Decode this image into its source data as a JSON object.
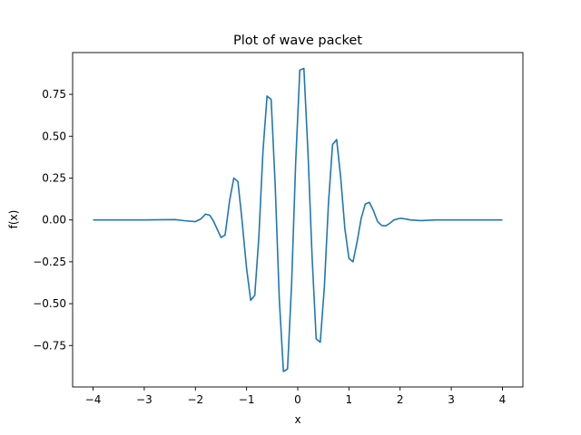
{
  "chart_data": {
    "type": "line",
    "title": "Plot of wave packet",
    "xlabel": "x",
    "ylabel": "f(x)",
    "xlim": [
      -4.4,
      4.4
    ],
    "ylim": [
      -0.9975,
      0.9995
    ],
    "grid": false,
    "x_ticks": [
      -4,
      -3,
      -2,
      -1,
      0,
      1,
      2,
      3,
      4
    ],
    "x_tick_labels": [
      "−4",
      "−3",
      "−2",
      "−1",
      "0",
      "1",
      "2",
      "3",
      "4"
    ],
    "y_ticks": [
      -0.75,
      -0.5,
      -0.25,
      0.0,
      0.25,
      0.5,
      0.75
    ],
    "y_tick_labels": [
      "−0.75",
      "−0.50",
      "−0.25",
      "0.00",
      "0.25",
      "0.50",
      "0.75"
    ],
    "series": [
      {
        "color": "#1f77b4",
        "x": [
          -4.0,
          -3.0,
          -2.4,
          -2.2,
          -2.0,
          -1.9,
          -1.8,
          -1.72,
          -1.65,
          -1.5,
          -1.42,
          -1.33,
          -1.25,
          -1.17,
          -1.1,
          -1.0,
          -0.92,
          -0.84,
          -0.76,
          -0.68,
          -0.6,
          -0.52,
          -0.44,
          -0.36,
          -0.28,
          -0.2,
          -0.12,
          -0.04,
          0.04,
          0.12,
          0.2,
          0.28,
          0.36,
          0.44,
          0.52,
          0.6,
          0.68,
          0.76,
          0.84,
          0.92,
          1.0,
          1.08,
          1.16,
          1.24,
          1.32,
          1.4,
          1.48,
          1.56,
          1.64,
          1.72,
          1.8,
          1.88,
          2.0,
          2.1,
          2.2,
          2.4,
          2.7,
          3.0,
          4.0
        ],
        "y": [
          0.0,
          0.0,
          0.002,
          -0.005,
          -0.01,
          0.005,
          0.035,
          0.028,
          -0.005,
          -0.105,
          -0.09,
          0.12,
          0.25,
          0.23,
          0.03,
          -0.29,
          -0.48,
          -0.45,
          -0.1,
          0.41,
          0.74,
          0.72,
          0.2,
          -0.48,
          -0.905,
          -0.89,
          -0.38,
          0.35,
          0.895,
          0.905,
          0.4,
          -0.22,
          -0.71,
          -0.73,
          -0.4,
          0.1,
          0.45,
          0.48,
          0.25,
          -0.05,
          -0.23,
          -0.25,
          -0.13,
          0.01,
          0.095,
          0.105,
          0.055,
          -0.01,
          -0.033,
          -0.035,
          -0.02,
          0.0,
          0.01,
          0.006,
          0.0,
          -0.004,
          0.0,
          0.0,
          0.0
        ]
      }
    ]
  }
}
